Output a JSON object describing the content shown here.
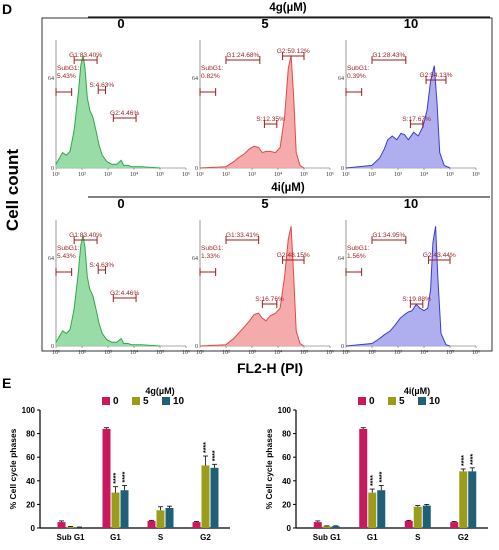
{
  "panel_d": {
    "letter": "D",
    "y_label": "Cell count",
    "x_label": "FL2-H (PI)",
    "x_ticks": [
      "10¹",
      "10²",
      "10³",
      "10⁴",
      "10⁵",
      "10⁶"
    ],
    "y_ticks": [
      "0",
      "64"
    ],
    "rows": [
      {
        "compound": "4g(µM)",
        "panels": [
          {
            "conc": "0",
            "color": "#2ea84a",
            "fill": "#8fd89e",
            "subg1": [
              "SubG1:",
              "5.43%"
            ],
            "g1": "G1:83.40%",
            "s": "S:4.63%",
            "g2": "G2:4.46%",
            "gate_subg1": [
              10,
              40
            ],
            "gate_g1": [
              50,
              380
            ],
            "gate_s": [
              420,
              800
            ],
            "gate_g2": [
              1600,
              12000
            ],
            "profile": [
              [
                10,
                0.03
              ],
              [
                18,
                0.12
              ],
              [
                25,
                0.1
              ],
              [
                35,
                0.13
              ],
              [
                50,
                0.3
              ],
              [
                70,
                0.56
              ],
              [
                90,
                0.8
              ],
              [
                110,
                0.88
              ],
              [
                130,
                0.78
              ],
              [
                160,
                0.55
              ],
              [
                200,
                0.45
              ],
              [
                260,
                0.4
              ],
              [
                340,
                0.3
              ],
              [
                450,
                0.18
              ],
              [
                600,
                0.1
              ],
              [
                900,
                0.05
              ],
              [
                1400,
                0.03
              ],
              [
                2200,
                0.03
              ],
              [
                3200,
                0.06
              ],
              [
                4000,
                0.02
              ],
              [
                6000,
                0.02
              ],
              [
                8000,
                0.01
              ],
              [
                20000,
                0.01
              ],
              [
                100000,
                0.0
              ]
            ]
          },
          {
            "conc": "5",
            "color": "#e04848",
            "fill": "#f4a2a2",
            "subg1": [
              "SubG1:",
              "0.82%"
            ],
            "g1": "G1:24.68%",
            "s": "S:12.35%",
            "g2": "G2:59.12%",
            "gate_subg1": [
              10,
              40
            ],
            "gate_g1": [
              100,
              2000
            ],
            "gate_s": [
              3000,
              9000
            ],
            "gate_g2": [
              15000,
              100000
            ],
            "profile": [
              [
                10,
                0.0
              ],
              [
                100,
                0.01
              ],
              [
                200,
                0.05
              ],
              [
                300,
                0.08
              ],
              [
                500,
                0.11
              ],
              [
                800,
                0.15
              ],
              [
                1200,
                0.17
              ],
              [
                1800,
                0.16
              ],
              [
                2500,
                0.12
              ],
              [
                3500,
                0.13
              ],
              [
                5000,
                0.13
              ],
              [
                8000,
                0.12
              ],
              [
                12000,
                0.16
              ],
              [
                18000,
                0.4
              ],
              [
                25000,
                0.78
              ],
              [
                32000,
                0.88
              ],
              [
                40000,
                0.55
              ],
              [
                50000,
                0.12
              ],
              [
                70000,
                0.02
              ],
              [
                100000,
                0.0
              ]
            ]
          },
          {
            "conc": "10",
            "color": "#3b3bd0",
            "fill": "#a6a6ee",
            "subg1": [
              "SubG1:",
              "0.39%"
            ],
            "g1": "G1:28.43%",
            "s": "S:17.67%",
            "g2": "G2:54.13%",
            "gate_subg1": [
              10,
              40
            ],
            "gate_g1": [
              100,
              2000
            ],
            "gate_s": [
              3000,
              9000
            ],
            "gate_g2": [
              12000,
              70000
            ],
            "profile": [
              [
                10,
                0.0
              ],
              [
                100,
                0.02
              ],
              [
                200,
                0.08
              ],
              [
                300,
                0.15
              ],
              [
                400,
                0.22
              ],
              [
                600,
                0.25
              ],
              [
                900,
                0.22
              ],
              [
                1300,
                0.27
              ],
              [
                1800,
                0.26
              ],
              [
                2500,
                0.22
              ],
              [
                4000,
                0.28
              ],
              [
                6000,
                0.25
              ],
              [
                9000,
                0.32
              ],
              [
                13000,
                0.45
              ],
              [
                18000,
                0.68
              ],
              [
                25000,
                0.8
              ],
              [
                32000,
                0.5
              ],
              [
                40000,
                0.12
              ],
              [
                60000,
                0.02
              ],
              [
                100000,
                0.0
              ]
            ]
          }
        ]
      },
      {
        "compound": "4i(µM)",
        "panels": [
          {
            "conc": "0",
            "color": "#2ea84a",
            "fill": "#8fd89e",
            "subg1": [
              "SubG1:",
              "5.43%"
            ],
            "g1": "G1:83.40%",
            "s": "S:4.63%",
            "g2": "G2:4.46%",
            "gate_subg1": [
              10,
              40
            ],
            "gate_g1": [
              50,
              380
            ],
            "gate_s": [
              420,
              800
            ],
            "gate_g2": [
              1600,
              12000
            ],
            "profile": [
              [
                10,
                0.03
              ],
              [
                18,
                0.12
              ],
              [
                25,
                0.1
              ],
              [
                35,
                0.13
              ],
              [
                50,
                0.3
              ],
              [
                70,
                0.56
              ],
              [
                90,
                0.8
              ],
              [
                110,
                0.88
              ],
              [
                130,
                0.78
              ],
              [
                160,
                0.55
              ],
              [
                200,
                0.45
              ],
              [
                260,
                0.4
              ],
              [
                340,
                0.3
              ],
              [
                450,
                0.18
              ],
              [
                600,
                0.1
              ],
              [
                900,
                0.05
              ],
              [
                1400,
                0.03
              ],
              [
                2200,
                0.03
              ],
              [
                3200,
                0.06
              ],
              [
                4000,
                0.02
              ],
              [
                6000,
                0.02
              ],
              [
                8000,
                0.01
              ],
              [
                20000,
                0.01
              ],
              [
                100000,
                0.0
              ]
            ]
          },
          {
            "conc": "5",
            "color": "#e04848",
            "fill": "#f4a2a2",
            "subg1": [
              "SubG1:",
              "1.33%"
            ],
            "g1": "G1:33.41%",
            "s": "S:16.76%",
            "g2": "G2:48.15%",
            "gate_subg1": [
              10,
              40
            ],
            "gate_g1": [
              100,
              1800
            ],
            "gate_s": [
              2500,
              9000
            ],
            "gate_g2": [
              15000,
              100000
            ],
            "profile": [
              [
                10,
                0.0
              ],
              [
                100,
                0.01
              ],
              [
                200,
                0.06
              ],
              [
                300,
                0.1
              ],
              [
                500,
                0.15
              ],
              [
                800,
                0.2
              ],
              [
                1200,
                0.25
              ],
              [
                1800,
                0.26
              ],
              [
                2500,
                0.22
              ],
              [
                3500,
                0.2
              ],
              [
                5000,
                0.24
              ],
              [
                8000,
                0.26
              ],
              [
                12000,
                0.3
              ],
              [
                18000,
                0.55
              ],
              [
                25000,
                0.85
              ],
              [
                32000,
                0.95
              ],
              [
                40000,
                0.55
              ],
              [
                50000,
                0.12
              ],
              [
                70000,
                0.02
              ],
              [
                100000,
                0.0
              ]
            ]
          },
          {
            "conc": "10",
            "color": "#3b3bd0",
            "fill": "#a6a6ee",
            "subg1": [
              "SubG1:",
              "1.56%"
            ],
            "g1": "G1:34.95%",
            "s": "S:19.88%",
            "g2": "G2:43.44%",
            "gate_subg1": [
              10,
              40
            ],
            "gate_g1": [
              100,
              2000
            ],
            "gate_s": [
              3000,
              9000
            ],
            "gate_g2": [
              15000,
              100000
            ],
            "profile": [
              [
                10,
                0.0
              ],
              [
                100,
                0.02
              ],
              [
                200,
                0.06
              ],
              [
                300,
                0.09
              ],
              [
                500,
                0.12
              ],
              [
                800,
                0.17
              ],
              [
                1200,
                0.22
              ],
              [
                1800,
                0.25
              ],
              [
                2500,
                0.27
              ],
              [
                3500,
                0.28
              ],
              [
                5000,
                0.33
              ],
              [
                7000,
                0.3
              ],
              [
                10000,
                0.28
              ],
              [
                14000,
                0.3
              ],
              [
                18000,
                0.45
              ],
              [
                22000,
                0.82
              ],
              [
                28000,
                0.95
              ],
              [
                34000,
                0.55
              ],
              [
                45000,
                0.1
              ],
              [
                70000,
                0.01
              ],
              [
                100000,
                0.0
              ]
            ]
          }
        ]
      }
    ]
  },
  "panel_e": {
    "letter": "E",
    "legend_colors": {
      "0": "#c8185e",
      "5": "#9b9b1c",
      "10": "#1f5f78"
    }
  },
  "chart_data": [
    {
      "type": "bar",
      "title": "4g(µM)",
      "ylabel": "% Cell cycle phases",
      "ylim": [
        0,
        100
      ],
      "yticks": [
        0,
        20,
        40,
        60,
        80,
        100
      ],
      "categories": [
        "Sub G1",
        "G1",
        "S",
        "G2"
      ],
      "series": [
        {
          "name": "0",
          "color": "#c8185e",
          "values": [
            5,
            84,
            6,
            5
          ],
          "errors": [
            1,
            1,
            0.5,
            0.5
          ]
        },
        {
          "name": "5",
          "color": "#9b9b1c",
          "values": [
            1,
            30,
            15,
            53
          ],
          "errors": [
            0.3,
            5,
            3,
            8
          ]
        },
        {
          "name": "10",
          "color": "#1f5f78",
          "values": [
            0.5,
            32,
            17,
            51
          ],
          "errors": [
            0.3,
            4,
            1.5,
            3
          ]
        }
      ],
      "annotations": [
        {
          "category": "G1",
          "series": "5",
          "text": "****"
        },
        {
          "category": "G1",
          "series": "10",
          "text": "****"
        },
        {
          "category": "G2",
          "series": "5",
          "text": "****"
        },
        {
          "category": "G2",
          "series": "10",
          "text": "****"
        }
      ]
    },
    {
      "type": "bar",
      "title": "4i(µM)",
      "ylabel": "% Cell cycle phases",
      "ylim": [
        0,
        100
      ],
      "yticks": [
        0,
        20,
        40,
        60,
        80,
        100
      ],
      "categories": [
        "Sub G1",
        "G1",
        "S",
        "G2"
      ],
      "series": [
        {
          "name": "0",
          "color": "#c8185e",
          "values": [
            5,
            84,
            6,
            5
          ],
          "errors": [
            1,
            1,
            0.5,
            0.5
          ]
        },
        {
          "name": "5",
          "color": "#9b9b1c",
          "values": [
            1.5,
            30,
            18,
            48
          ],
          "errors": [
            0.3,
            3,
            1,
            2
          ]
        },
        {
          "name": "10",
          "color": "#1f5f78",
          "values": [
            1.5,
            32,
            19,
            48
          ],
          "errors": [
            0.3,
            4,
            1,
            3
          ]
        }
      ],
      "annotations": [
        {
          "category": "G1",
          "series": "5",
          "text": "****"
        },
        {
          "category": "G1",
          "series": "10",
          "text": "****"
        },
        {
          "category": "G2",
          "series": "5",
          "text": "****"
        },
        {
          "category": "G2",
          "series": "10",
          "text": "****"
        }
      ]
    }
  ]
}
